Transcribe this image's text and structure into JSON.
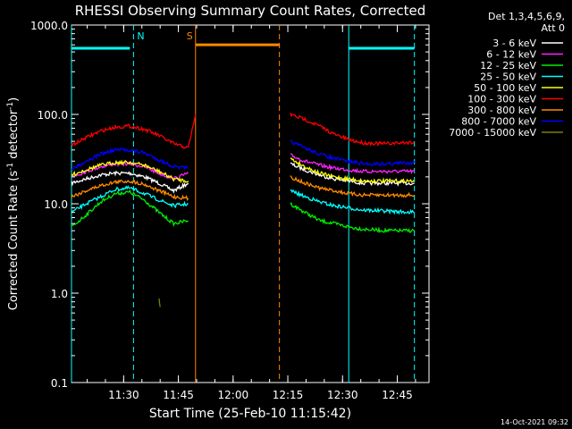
{
  "chart_data": {
    "type": "line",
    "title": "RHESSI Observing Summary Count Rates, Corrected",
    "xlabel": "Start Time (25-Feb-10 11:15:42)",
    "ylabel_main": "Corrected Count Rate (s",
    "ylabel_sup": "-1",
    "ylabel_mid": " detector",
    "ylabel_end": ")",
    "yscale": "log",
    "ylim": [
      0.1,
      1000
    ],
    "xlim_minutes": [
      0,
      98
    ],
    "x_ticks": [
      {
        "label": "11:30",
        "min": 14.3
      },
      {
        "label": "11:45",
        "min": 29.3
      },
      {
        "label": "12:00",
        "min": 44.3
      },
      {
        "label": "12:15",
        "min": 59.3
      },
      {
        "label": "12:30",
        "min": 74.3
      },
      {
        "label": "12:45",
        "min": 89.3
      }
    ],
    "y_ticks": [
      {
        "label": "0.1",
        "v": 0.1
      },
      {
        "label": "1.0",
        "v": 1
      },
      {
        "label": "10.0",
        "v": 10
      },
      {
        "label": "100.0",
        "v": 100
      },
      {
        "label": "1000.0",
        "v": 1000
      }
    ],
    "legend_header": [
      "Det 1,3,4,5,6,9,",
      "Att 0"
    ],
    "legend_placement": "right",
    "series": [
      {
        "name": "3 - 6 keV",
        "color": "#ffffff",
        "pre": [
          [
            0,
            17
          ],
          [
            4,
            19
          ],
          [
            8,
            21
          ],
          [
            12,
            22
          ],
          [
            16,
            22
          ],
          [
            20,
            20
          ],
          [
            24,
            17
          ],
          [
            28,
            14
          ],
          [
            32,
            17
          ]
        ],
        "post": [
          [
            60,
            28
          ],
          [
            64,
            24
          ],
          [
            68,
            21
          ],
          [
            72,
            19
          ],
          [
            76,
            18
          ],
          [
            80,
            17
          ],
          [
            86,
            17
          ],
          [
            94,
            17
          ]
        ]
      },
      {
        "name": "6 - 12 keV",
        "color": "#ff22ff",
        "pre": [
          [
            0,
            20
          ],
          [
            4,
            23
          ],
          [
            8,
            26
          ],
          [
            12,
            28
          ],
          [
            16,
            28
          ],
          [
            20,
            26
          ],
          [
            24,
            22
          ],
          [
            28,
            19
          ],
          [
            32,
            22
          ]
        ],
        "post": [
          [
            60,
            35
          ],
          [
            64,
            30
          ],
          [
            68,
            27
          ],
          [
            72,
            25
          ],
          [
            76,
            24
          ],
          [
            80,
            23
          ],
          [
            86,
            23
          ],
          [
            94,
            23
          ]
        ]
      },
      {
        "name": "12 - 25 keV",
        "color": "#00ee00",
        "pre": [
          [
            0,
            5.5
          ],
          [
            4,
            7.5
          ],
          [
            8,
            10.5
          ],
          [
            12,
            13
          ],
          [
            16,
            13.5
          ],
          [
            20,
            11
          ],
          [
            24,
            8
          ],
          [
            28,
            6
          ],
          [
            32,
            6.5
          ]
        ],
        "post": [
          [
            60,
            10
          ],
          [
            64,
            8
          ],
          [
            68,
            6.5
          ],
          [
            72,
            6
          ],
          [
            76,
            5.5
          ],
          [
            80,
            5.2
          ],
          [
            86,
            5
          ],
          [
            94,
            5
          ]
        ]
      },
      {
        "name": "25 - 50 keV",
        "color": "#00ffff",
        "pre": [
          [
            0,
            8
          ],
          [
            4,
            10
          ],
          [
            8,
            12
          ],
          [
            12,
            14.5
          ],
          [
            16,
            15
          ],
          [
            20,
            13
          ],
          [
            24,
            11
          ],
          [
            28,
            9.5
          ],
          [
            32,
            10
          ]
        ],
        "post": [
          [
            60,
            14
          ],
          [
            64,
            12
          ],
          [
            68,
            10.5
          ],
          [
            72,
            9.5
          ],
          [
            76,
            9
          ],
          [
            80,
            8.5
          ],
          [
            86,
            8.3
          ],
          [
            94,
            8
          ]
        ]
      },
      {
        "name": "50 - 100 keV",
        "color": "#ffff00",
        "pre": [
          [
            0,
            21
          ],
          [
            4,
            24
          ],
          [
            8,
            27
          ],
          [
            12,
            29
          ],
          [
            16,
            29
          ],
          [
            20,
            27
          ],
          [
            24,
            23
          ],
          [
            28,
            19
          ],
          [
            32,
            18
          ]
        ],
        "post": [
          [
            60,
            32
          ],
          [
            64,
            26
          ],
          [
            68,
            22
          ],
          [
            72,
            20
          ],
          [
            76,
            19
          ],
          [
            80,
            18
          ],
          [
            86,
            18
          ],
          [
            94,
            18
          ]
        ]
      },
      {
        "name": "100 - 300 keV",
        "color": "#ff0000",
        "pre": [
          [
            0,
            45
          ],
          [
            4,
            55
          ],
          [
            8,
            65
          ],
          [
            12,
            72
          ],
          [
            16,
            74
          ],
          [
            20,
            68
          ],
          [
            24,
            58
          ],
          [
            28,
            47
          ],
          [
            32,
            42
          ],
          [
            34,
            100
          ]
        ],
        "post": [
          [
            60,
            100
          ],
          [
            64,
            88
          ],
          [
            68,
            74
          ],
          [
            72,
            60
          ],
          [
            76,
            52
          ],
          [
            80,
            48
          ],
          [
            86,
            47
          ],
          [
            94,
            49
          ]
        ]
      },
      {
        "name": "300 - 800 keV",
        "color": "#ff8800",
        "pre": [
          [
            0,
            12
          ],
          [
            4,
            14
          ],
          [
            8,
            16
          ],
          [
            12,
            17.5
          ],
          [
            16,
            18
          ],
          [
            20,
            16.5
          ],
          [
            24,
            14
          ],
          [
            28,
            12
          ],
          [
            32,
            11.5
          ]
        ],
        "post": [
          [
            60,
            20
          ],
          [
            64,
            17
          ],
          [
            68,
            15
          ],
          [
            72,
            14
          ],
          [
            76,
            13
          ],
          [
            80,
            12.5
          ],
          [
            86,
            12.5
          ],
          [
            94,
            12.5
          ]
        ]
      },
      {
        "name": "800 - 7000 keV",
        "color": "#0000ff",
        "pre": [
          [
            0,
            24
          ],
          [
            4,
            30
          ],
          [
            8,
            36
          ],
          [
            12,
            40
          ],
          [
            16,
            40
          ],
          [
            20,
            37
          ],
          [
            24,
            31
          ],
          [
            28,
            26
          ],
          [
            32,
            25
          ]
        ],
        "post": [
          [
            60,
            50
          ],
          [
            64,
            42
          ],
          [
            68,
            36
          ],
          [
            72,
            32
          ],
          [
            76,
            30
          ],
          [
            80,
            28
          ],
          [
            86,
            28
          ],
          [
            94,
            29
          ]
        ]
      },
      {
        "name": "7000 - 15000 keV",
        "color": "#7f7f00",
        "pre": [
          [
            24,
            0.9
          ],
          [
            24.3,
            0.7
          ]
        ],
        "post": []
      }
    ],
    "intervals": [
      {
        "label": "N",
        "color": "#00ffff",
        "bar_start": 0,
        "bar_end": 16,
        "start": 0,
        "end": 17,
        "bar_value": 550
      },
      {
        "label": "S",
        "color": "#ff8800",
        "bar_start": 34,
        "bar_end": 57,
        "start": 34,
        "end": 57,
        "bar_value": 600
      },
      {
        "label": "",
        "color": "#00ffff",
        "bar_start": 76,
        "bar_end": 94,
        "start": 76,
        "end": 94,
        "bar_value": 550
      }
    ]
  },
  "footer": {
    "timestamp": "14-Oct-2021 09:32"
  }
}
